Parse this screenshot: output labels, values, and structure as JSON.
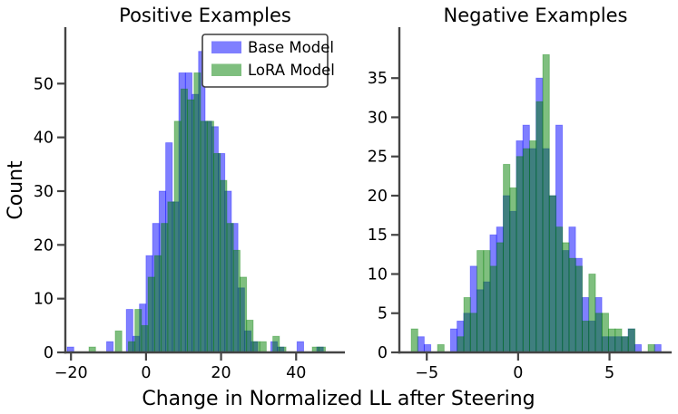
{
  "chart_data": {
    "type": "histogram",
    "figure": "two-panel overlaid histograms",
    "xlabel": "Change in Normalized LL after Steering",
    "ylabel": "Count",
    "legend": {
      "position": "upper right of left panel",
      "entries": [
        {
          "label": "Base Model",
          "color": "#0000ff",
          "alpha": 0.5
        },
        {
          "label": "LoRA Model",
          "color": "#007f00",
          "alpha": 0.5
        }
      ]
    },
    "panels": [
      {
        "title": "Positive Examples",
        "xlim": [
          -21.5,
          53
        ],
        "ylim": [
          0,
          60.5
        ],
        "xticks": [
          -20,
          0,
          20,
          40
        ],
        "yticks": [
          0,
          10,
          20,
          30,
          40,
          50
        ],
        "grid": false,
        "series": [
          {
            "name": "Base Model",
            "color": "#0000ff",
            "alpha": 0.5,
            "bin_start": -21,
            "bin_width": 1.75,
            "counts": [
              1,
              0,
              0,
              0,
              0,
              0,
              2,
              0,
              0,
              8,
              3,
              9,
              18,
              24,
              30,
              39,
              28,
              52,
              52,
              48,
              56,
              43,
              42,
              37,
              30,
              24,
              12,
              4,
              2,
              0,
              0,
              2,
              1,
              0,
              0,
              2,
              0,
              0,
              1,
              0
            ]
          },
          {
            "name": "LoRA Model",
            "color": "#007f00",
            "alpha": 0.5,
            "bin_start": -15.2,
            "bin_width": 1.75,
            "counts": [
              1,
              0,
              0,
              0,
              4,
              0,
              2,
              8,
              5,
              14,
              18,
              24,
              28,
              43,
              49,
              47,
              52,
              43,
              43,
              37,
              32,
              24,
              19,
              14,
              6,
              2,
              2,
              0,
              3,
              1,
              0,
              0,
              0,
              0,
              1,
              1,
              0,
              0,
              0,
              0
            ]
          }
        ]
      },
      {
        "title": "Negative Examples",
        "xlim": [
          -6.5,
          8.4
        ],
        "ylim": [
          0,
          41.5
        ],
        "xticks": [
          -5,
          0,
          5
        ],
        "yticks": [
          0,
          5,
          10,
          15,
          20,
          25,
          30,
          35
        ],
        "grid": false,
        "series": [
          {
            "name": "Base Model",
            "color": "#0000ff",
            "alpha": 0.5,
            "bin_start": -5.5,
            "bin_width": 0.36,
            "counts": [
              2,
              1,
              0,
              0,
              0,
              3,
              4,
              5,
              11,
              8,
              9,
              15,
              16,
              20,
              18,
              27,
              29,
              26,
              35,
              26,
              20,
              29,
              13,
              16,
              12,
              7,
              4,
              7,
              2,
              2,
              2,
              2,
              3,
              1,
              0,
              0,
              1
            ]
          },
          {
            "name": "LoRA Model",
            "color": "#007f00",
            "alpha": 0.5,
            "bin_start": -5.85,
            "bin_width": 0.36,
            "counts": [
              3,
              0,
              0,
              0,
              1,
              0,
              0,
              2,
              7,
              5,
              13,
              13,
              11,
              14,
              24,
              21,
              25,
              26,
              27,
              32,
              38,
              20,
              16,
              14,
              12,
              11,
              4,
              10,
              5,
              5,
              3,
              3,
              2,
              3,
              0,
              0,
              1
            ]
          }
        ]
      }
    ]
  }
}
